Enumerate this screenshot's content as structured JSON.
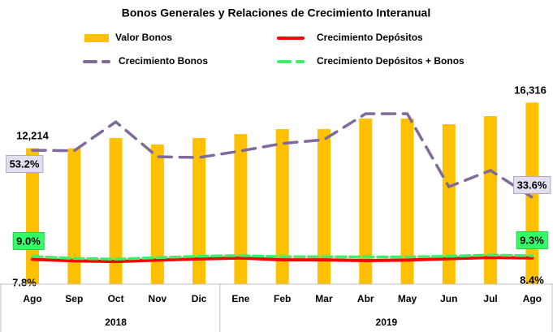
{
  "chart_data": {
    "type": "bar-line",
    "title": "Bonos Generales y Relaciones de Crecimiento Interanual",
    "categories": [
      "Ago",
      "Sep",
      "Oct",
      "Nov",
      "Dic",
      "Ene",
      "Feb",
      "Mar",
      "Abr",
      "May",
      "Jun",
      "Jul",
      "Ago"
    ],
    "x_groups": [
      {
        "label": "2018",
        "size": 5
      },
      {
        "label": "2019",
        "size": 8
      }
    ],
    "ylim": [
      0,
      19700
    ],
    "y2lim": [
      -2.5,
      88.7
    ],
    "series": [
      {
        "name": "Valor Bonos",
        "type": "bar",
        "color": "#ffc000",
        "values": [
          12214,
          12200,
          13130,
          12545,
          13130,
          13490,
          13930,
          13930,
          14880,
          14880,
          14370,
          15100,
          16316
        ],
        "value_labels": [
          "12,214",
          null,
          null,
          null,
          null,
          null,
          null,
          null,
          null,
          null,
          null,
          null,
          "16,316"
        ]
      },
      {
        "name": "Crecimiento Depósitos",
        "type": "line",
        "axis": "y2",
        "color": "#ff0000",
        "values": [
          7.8,
          7.2,
          6.9,
          7.5,
          8.0,
          8.4,
          7.6,
          7.6,
          7.3,
          7.5,
          8.1,
          8.6,
          8.4
        ],
        "value_labels": [
          "7.8%",
          null,
          null,
          null,
          null,
          null,
          null,
          null,
          null,
          null,
          null,
          null,
          "8.4%"
        ]
      },
      {
        "name": "Crecimiento Bonos",
        "type": "line",
        "axis": "y2",
        "color": "#7f6a9a",
        "dashed": true,
        "values": [
          53.2,
          53.0,
          65.0,
          50.5,
          50.2,
          52.9,
          56.0,
          57.6,
          68.4,
          68.4,
          38.0,
          44.8,
          33.6
        ],
        "value_labels": [
          "53.2%",
          null,
          null,
          null,
          null,
          null,
          null,
          null,
          null,
          null,
          null,
          null,
          "33.6%"
        ]
      },
      {
        "name": "Crecimiento Depósitos + Bonos",
        "type": "line",
        "axis": "y2",
        "color": "#3cf06a",
        "dashed": true,
        "values": [
          9.0,
          8.2,
          7.9,
          8.5,
          9.1,
          9.4,
          8.9,
          8.9,
          8.8,
          8.8,
          9.1,
          9.6,
          9.3
        ],
        "value_labels": [
          "9.0%",
          null,
          null,
          null,
          null,
          null,
          null,
          null,
          null,
          null,
          null,
          null,
          "9.3%"
        ]
      }
    ]
  }
}
